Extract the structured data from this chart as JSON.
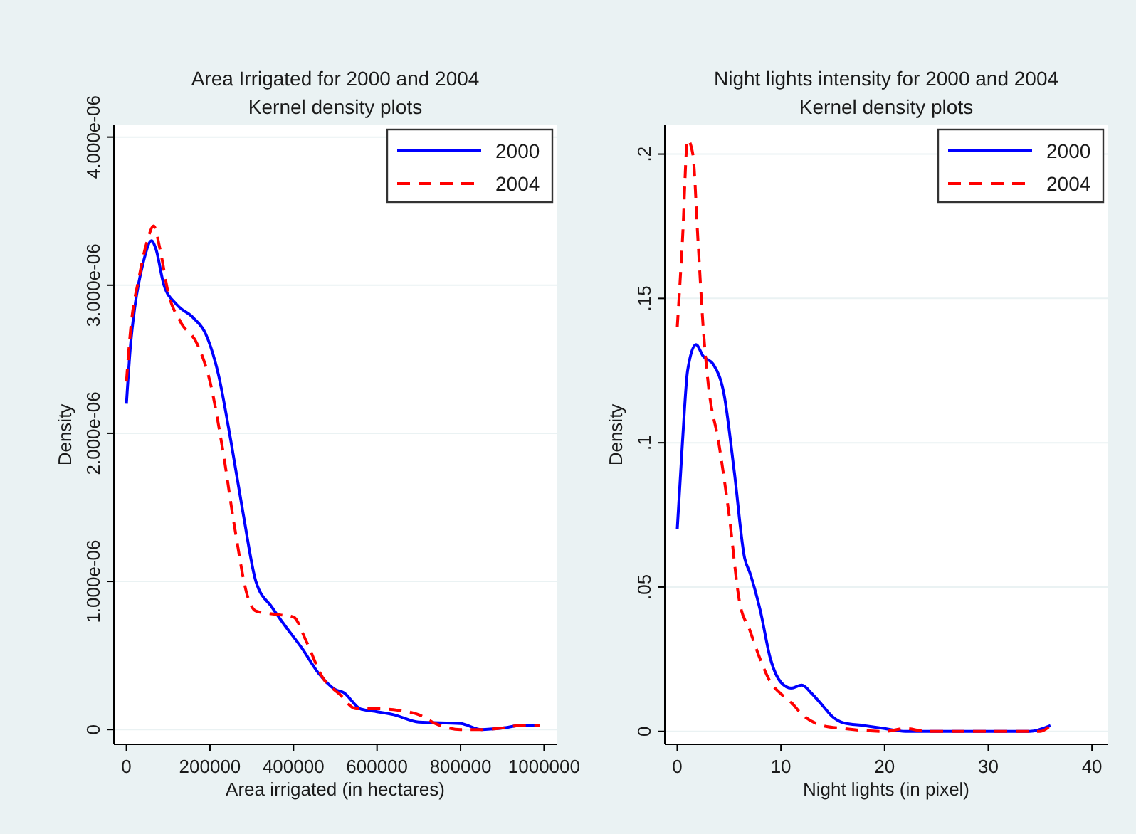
{
  "chart_data": [
    {
      "type": "line",
      "title": "Area Irrigated for 2000 and 2004",
      "subtitle": "Kernel density plots",
      "xlabel": "Area irrigated (in hectares)",
      "ylabel": "Density",
      "xlim": [
        -30000,
        1030000
      ],
      "xticks": [
        0,
        200000,
        400000,
        600000,
        800000,
        1000000
      ],
      "ylim": [
        -1e-07,
        4.08e-06
      ],
      "yticks": [
        0,
        {
          "value": 1e-06,
          "label": "1.000e-06"
        },
        {
          "value": 2e-06,
          "label": "2.000e-06"
        },
        {
          "value": 3e-06,
          "label": "3.000e-06"
        },
        {
          "value": 4e-06,
          "label": "4.000e-06"
        }
      ],
      "grid": "y",
      "legend": "top right",
      "marker": "none",
      "series": [
        {
          "name": "2000",
          "color": "#0000ff",
          "line_style": "solid",
          "x": [
            0,
            10000,
            20000,
            40000,
            60000,
            70000,
            90000,
            120000,
            160000,
            190000,
            220000,
            250000,
            280000,
            310000,
            350000,
            380000,
            420000,
            460000,
            500000,
            520000,
            560000,
            600000,
            640000,
            700000,
            800000,
            850000,
            900000,
            950000,
            990000
          ],
          "values": [
            2.2e-06,
            2.6e-06,
            2.85e-06,
            3.15e-06,
            3.3e-06,
            3.25e-06,
            3e-06,
            2.87e-06,
            2.78e-06,
            2.67e-06,
            2.4e-06,
            1.95e-06,
            1.45e-06,
            1e-06,
            8.2e-07,
            7e-07,
            5.5e-07,
            3.8e-07,
            2.7e-07,
            2.5e-07,
            1.4e-07,
            1.2e-07,
            1e-07,
            5e-08,
            4e-08,
            0.0,
            1e-08,
            3e-08,
            3e-08
          ]
        },
        {
          "name": "2004",
          "color": "#ff0000",
          "line_style": "dashed",
          "x": [
            0,
            10000,
            30000,
            50000,
            65000,
            80000,
            100000,
            130000,
            170000,
            200000,
            230000,
            260000,
            290000,
            310000,
            350000,
            400000,
            430000,
            470000,
            510000,
            550000,
            600000,
            650000,
            700000,
            740000,
            800000,
            850000,
            900000,
            950000,
            990000
          ],
          "values": [
            2.35e-06,
            2.7e-06,
            3.05e-06,
            3.3e-06,
            3.4e-06,
            3.25e-06,
            2.95e-06,
            2.75e-06,
            2.6e-06,
            2.35e-06,
            1.9e-06,
            1.35e-06,
            9e-07,
            8e-07,
            7.8e-07,
            7.6e-07,
            6e-07,
            3.5e-07,
            2.4e-07,
            1.4e-07,
            1.4e-07,
            1.3e-07,
            1e-07,
            4e-08,
            0.0,
            0.0,
            1e-08,
            3e-08,
            3e-08
          ]
        }
      ]
    },
    {
      "type": "line",
      "title": "Night lights intensity for 2000 and 2004",
      "subtitle": "Kernel density plots",
      "xlabel": "Night lights (in pixel)",
      "ylabel": "Density",
      "xlim": [
        -1.2,
        41.5
      ],
      "xticks": [
        0,
        10,
        20,
        30,
        40
      ],
      "ylim": [
        -0.0045,
        0.21
      ],
      "yticks": [
        0,
        {
          "value": 0.05,
          "label": ".05"
        },
        {
          "value": 0.1,
          "label": ".1"
        },
        {
          "value": 0.15,
          "label": ".15"
        },
        {
          "value": 0.2,
          "label": ".2"
        }
      ],
      "grid": "y",
      "legend": "top right",
      "marker": "none",
      "series": [
        {
          "name": "2000",
          "color": "#0000ff",
          "line_style": "solid",
          "x": [
            0,
            0.5,
            1,
            1.8,
            2.5,
            3.5,
            4.5,
            5.5,
            6.5,
            7,
            8,
            9,
            10,
            11,
            12,
            13,
            14,
            15,
            16,
            18,
            20,
            22,
            30,
            34,
            36
          ],
          "values": [
            0.07,
            0.1,
            0.125,
            0.134,
            0.13,
            0.127,
            0.117,
            0.09,
            0.06,
            0.055,
            0.042,
            0.025,
            0.017,
            0.015,
            0.016,
            0.013,
            0.009,
            0.005,
            0.003,
            0.002,
            0.001,
            0.0,
            0.0,
            0.0,
            0.002
          ]
        },
        {
          "name": "2004",
          "color": "#ff0000",
          "line_style": "dashed",
          "x": [
            0,
            0.5,
            1,
            1.5,
            2,
            2.5,
            3,
            4,
            5,
            6,
            7,
            8,
            9,
            10,
            11,
            12,
            14,
            16,
            20,
            22,
            24,
            35,
            36
          ],
          "values": [
            0.14,
            0.17,
            0.205,
            0.2,
            0.17,
            0.14,
            0.12,
            0.1,
            0.075,
            0.045,
            0.035,
            0.025,
            0.017,
            0.013,
            0.01,
            0.006,
            0.002,
            0.001,
            0.0,
            0.001,
            0.0,
            0.0,
            0.002
          ]
        }
      ]
    }
  ]
}
